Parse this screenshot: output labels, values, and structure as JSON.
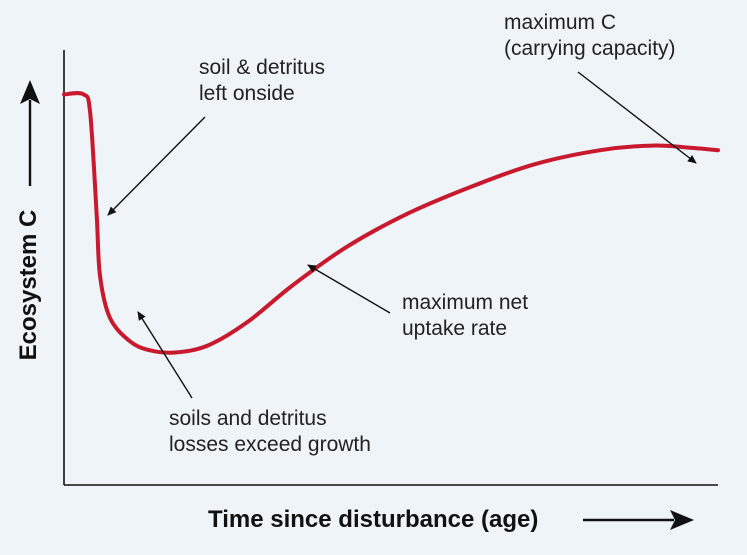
{
  "colors": {
    "background": "#eef4f7",
    "axis": "#111111",
    "curve": "#c8192e",
    "annotation": "#222222"
  },
  "chart_data": {
    "type": "line",
    "title": "",
    "xlabel": "Time since disturbance (age)",
    "ylabel": "Ecosystem C",
    "grid": false,
    "legend": "none",
    "axis_ticks": "none",
    "xlim": [
      0,
      100
    ],
    "ylim": [
      0,
      100
    ],
    "series": [
      {
        "name": "",
        "color": "#c8192e",
        "points": [
          [
            0,
            84
          ],
          [
            3,
            84
          ],
          [
            4,
            80
          ],
          [
            5,
            58
          ],
          [
            5.5,
            45
          ],
          [
            7,
            36
          ],
          [
            10,
            31
          ],
          [
            13,
            29
          ],
          [
            17,
            28.5
          ],
          [
            22,
            30
          ],
          [
            28,
            35
          ],
          [
            35,
            43
          ],
          [
            43,
            51
          ],
          [
            52,
            58
          ],
          [
            62,
            64
          ],
          [
            72,
            69
          ],
          [
            82,
            72
          ],
          [
            90,
            73
          ],
          [
            96,
            72.5
          ],
          [
            100,
            72
          ]
        ]
      }
    ],
    "annotations": [
      {
        "lines": [
          "soil & detritus",
          "left onside"
        ],
        "target_x": 5.5,
        "target_y": 56
      },
      {
        "lines": [
          "soils and detritus",
          "losses exceed growth"
        ],
        "target_x": 10,
        "target_y": 31
      },
      {
        "lines": [
          "maximum net",
          "uptake rate"
        ],
        "target_x": 36,
        "target_y": 44
      },
      {
        "lines": [
          "maximum C",
          "(carrying capacity)"
        ],
        "target_x": 97,
        "target_y": 72.5
      }
    ]
  }
}
